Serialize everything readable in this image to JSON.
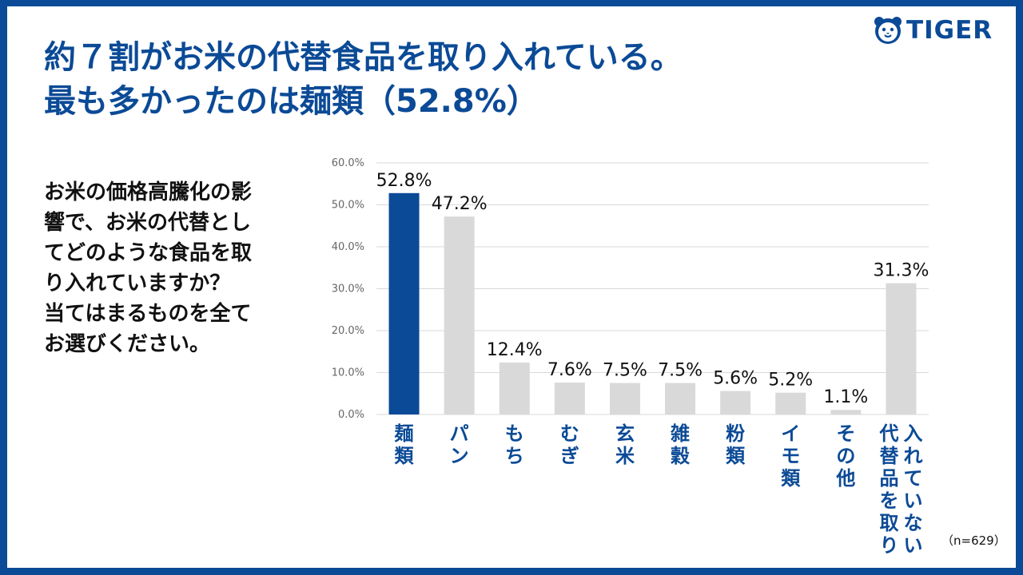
{
  "header": {
    "title_line1": "約７割がお米の代替食品を取り入れている。",
    "title_line2": "最も多かったのは麺類（52.8%）"
  },
  "brand": {
    "logo_text": "TIGER",
    "color": "#0b4a96"
  },
  "question": {
    "lines": [
      "お米の価格高騰化の影",
      "響で、お米の代替とし",
      "てどのような食品を取",
      "り入れていますか？",
      "当てはまるものを全て",
      "お選びください。"
    ]
  },
  "note": "（n=629）",
  "chart_data": {
    "type": "bar",
    "categories": [
      "麺類",
      "パン",
      "もち",
      "むぎ",
      "玄米",
      "雑穀",
      "粉類",
      "イモ類",
      "その他",
      "代替品を取り入れていない"
    ],
    "values": [
      52.8,
      47.2,
      12.4,
      7.6,
      7.5,
      7.5,
      5.6,
      5.2,
      1.1,
      31.3
    ],
    "value_labels": [
      "52.8%",
      "47.2%",
      "12.4%",
      "7.6%",
      "7.5%",
      "7.5%",
      "5.6%",
      "5.2%",
      "1.1%",
      "31.3%"
    ],
    "category_label_columns": [
      [
        "麺類"
      ],
      [
        "パン"
      ],
      [
        "もち"
      ],
      [
        "むぎ"
      ],
      [
        "玄米"
      ],
      [
        "雑穀"
      ],
      [
        "粉類"
      ],
      [
        "イモ類"
      ],
      [
        "その他"
      ],
      [
        "入れていない",
        "代替品を取り"
      ]
    ],
    "y_ticks": [
      "0.0%",
      "10.0%",
      "20.0%",
      "30.0%",
      "40.0%",
      "50.0%",
      "60.0%"
    ],
    "ylim": [
      0,
      60
    ],
    "grid": true,
    "highlight_index": 0,
    "colors": {
      "highlight": "#0b4a96",
      "default": "#d9d9d9",
      "grid": "#d9d9d9",
      "axis_text": "#666666",
      "category_text": "#0b4a96"
    },
    "title": "",
    "xlabel": "",
    "ylabel": ""
  }
}
